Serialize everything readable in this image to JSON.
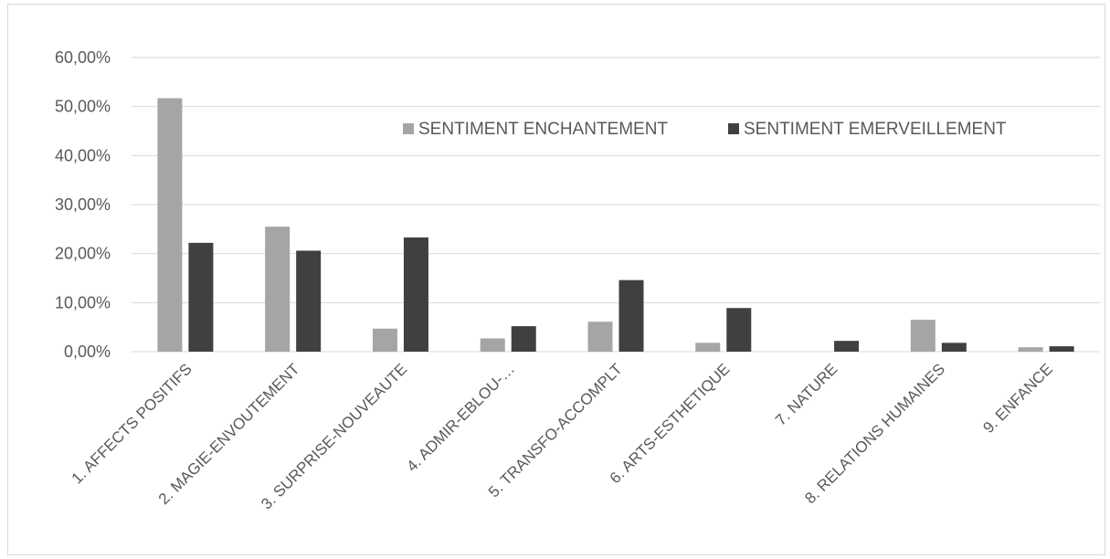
{
  "chart_data": {
    "type": "bar",
    "categories": [
      "1. AFFECTS POSITIFS",
      "2. MAGIE-ENVOUTEMENT",
      "3. SURPRISE-NOUVEAUTE",
      "4. ADMIR-EBLOU-…",
      "5. TRANSFO-ACCOMPLT",
      "6. ARTS-ESTHETIQUE",
      "7. NATURE",
      "8. RELATIONS HUMAINES",
      "9. ENFANCE"
    ],
    "series": [
      {
        "name": "SENTIMENT ENCHANTEMENT",
        "color": "#a5a5a5",
        "values": [
          0.517,
          0.255,
          0.047,
          0.027,
          0.061,
          0.018,
          0.0,
          0.065,
          0.009
        ]
      },
      {
        "name": "SENTIMENT EMERVEILLEMENT",
        "color": "#404040",
        "values": [
          0.222,
          0.206,
          0.233,
          0.052,
          0.146,
          0.089,
          0.022,
          0.018,
          0.011
        ]
      }
    ],
    "yticks": [
      "0,00%",
      "10,00%",
      "20,00%",
      "30,00%",
      "40,00%",
      "50,00%",
      "60,00%"
    ],
    "ylim": [
      0,
      0.6
    ],
    "grid": true,
    "legend_position": "top-center"
  }
}
